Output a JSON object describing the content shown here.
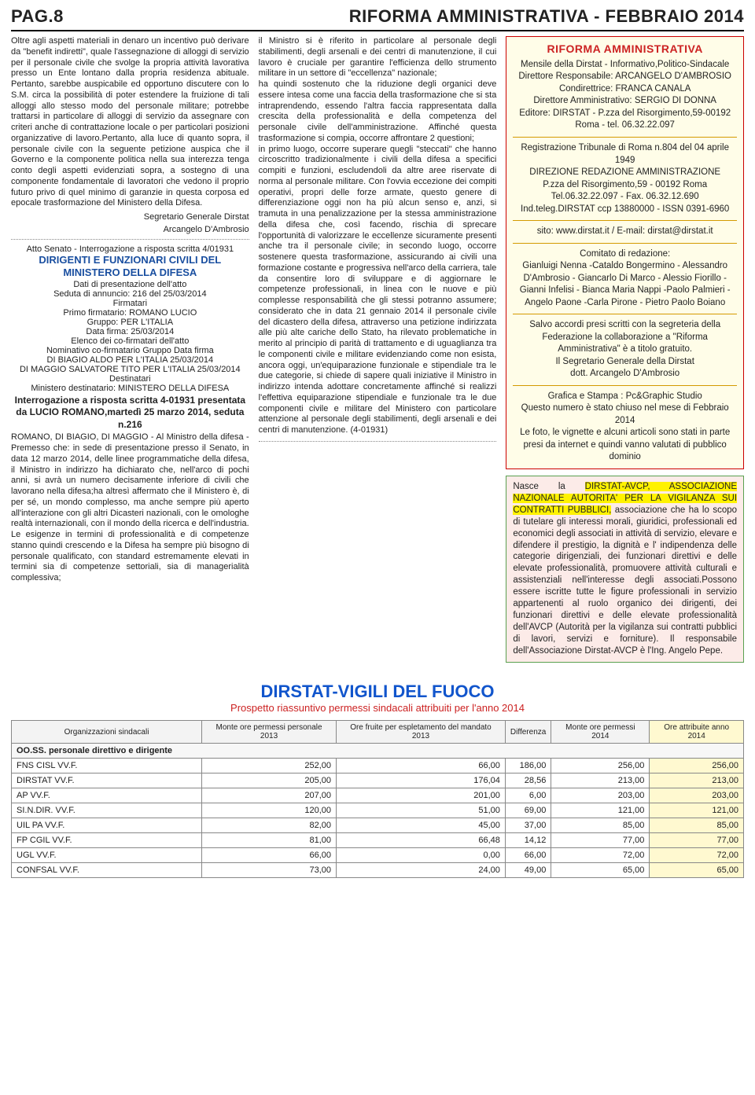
{
  "header": {
    "left": "PAG.8",
    "right": "RIFORMA AMMINISTRATIVA - FEBBRAIO 2014"
  },
  "col1": {
    "p1": "Oltre agli aspetti materiali in denaro un incentivo può derivare da \"benefit indiretti\", quale l'assegnazione di alloggi di servizio per il personale civile che svolge la propria attività lavorativa presso un Ente lontano dalla propria residenza abituale. Pertanto, sarebbe auspicabile ed opportuno discutere con lo S.M. circa la possibilità di poter estendere la fruizione di tali alloggi allo stesso modo del personale militare; potrebbe trattarsi in particolare di alloggi di servizio da assegnare con criteri anche di contrattazione locale o per particolari posizioni organizzative di lavoro.Pertanto, alla luce di quanto sopra, il personale civile con la seguente petizione auspica che il Governo e la componente politica nella sua interezza tenga conto degli aspetti evidenziati sopra, a sostegno di una componente fondamentale di lavoratori che vedono il proprio futuro privo di quel minimo di garanzie in questa corposa ed epocale trasformazione del Ministero della Difesa.",
    "sig1": "Segretario Generale Dirstat",
    "sig2": "Arcangelo D'Ambrosio",
    "interrog_line": "Atto Senato - Interrogazione a risposta scritta 4/01931",
    "title_blue1": "DIRIGENTI E FUNZIONARI CIVILI DEL MINISTERO DELLA DIFESA",
    "dati": "Dati di presentazione dell'atto",
    "seduta": "Seduta di annuncio: 216 del 25/03/2014",
    "firmatari": "Firmatari",
    "primo": "Primo firmatario: ROMANO LUCIO",
    "gruppo": "Gruppo: PER L'ITALIA",
    "data_firma": "Data firma: 25/03/2014",
    "elenco": "Elenco dei co-firmatari dell'atto",
    "nominativo": "Nominativo co-firmatario Gruppo Data firma",
    "dibiagio": "DI BIAGIO ALDO PER L'ITALIA 25/03/2014",
    "dimaggio": "DI MAGGIO SALVATORE TITO PER L'ITALIA 25/03/2014",
    "destinatari": "Destinatari",
    "ministero": "Ministero destinatario: MINISTERO DELLA DIFESA",
    "interrog_bold": "Interrogazione a risposta scritta 4-01931 presentata da LUCIO ROMANO,martedì 25 marzo 2014, seduta n.216",
    "p2": "ROMANO, DI BIAGIO, DI MAGGIO - Al Ministro della difesa - Premesso che:\nin sede di presentazione presso il Senato, in data 12 marzo 2014, delle linee programmatiche della difesa, il Ministro in indirizzo ha dichiarato che, nell'arco di pochi anni, si avrà un numero decisamente inferiore di civili che lavorano nella difesa;ha altresì affermato che il Ministero è, di per sé, un mondo complesso, ma anche sempre più aperto all'interazione con gli altri Dicasteri nazionali, con le omologhe realtà internazionali, con il mondo della ricerca e dell'industria. Le esigenze in termini di professionalità e di competenze stanno quindi crescendo e la Difesa ha sempre più bisogno di personale qualificato, con standard estremamente elevati in termini sia di competenze settoriali, sia di managerialità complessiva;"
  },
  "col2": {
    "p1": "il Ministro si è riferito in particolare al personale degli stabilimenti, degli arsenali e dei centri di manutenzione, il cui lavoro è cruciale per garantire l'efficienza dello strumento militare in un settore di \"eccellenza\" nazionale;",
    "p2": "ha quindi sostenuto che la riduzione degli organici deve essere intesa come una faccia della trasformazione che si sta intraprendendo, essendo l'altra faccia rappresentata dalla crescita della professionalità e della competenza del personale civile dell'amministrazione. Affinché questa trasformazione si compia, occorre affrontare 2 questioni;",
    "p3": "in primo luogo, occorre superare quegli \"steccati\" che hanno circoscritto tradizionalmente i civili della difesa a specifici compiti e funzioni, escludendoli da altre aree riservate di norma al personale militare. Con l'ovvia eccezione dei compiti operativi, propri delle forze armate, questo genere di differenziazione oggi non ha più alcun senso e, anzi, si tramuta in una penalizzazione per la stessa amministrazione della difesa che, così facendo, rischia di sprecare l'opportunità di valorizzare le eccellenze sicuramente presenti anche tra il personale civile; in secondo luogo, occorre sostenere questa trasformazione, assicurando ai civili una formazione costante e progressiva nell'arco della carriera, tale da consentire loro di sviluppare e di aggiornare le competenze professionali, in linea con le nuove e più complesse responsabilità che gli stessi potranno assumere; considerato che in data 21 gennaio 2014 il personale civile del dicastero della difesa, attraverso una petizione indirizzata alle più alte cariche dello Stato, ha rilevato problematiche in merito al principio di parità di trattamento e di uguaglianza tra le componenti civile e militare evidenziando come non esista, ancora oggi, un'equiparazione funzionale e stipendiale tra le due categorie, si chiede di sapere quali iniziative il Ministro in indirizzo intenda adottare concretamente affinché si realizzi l'effettiva equiparazione stipendiale e funzionale tra le due componenti civile e militare del Ministero con particolare attenzione al personale degli stabilimenti, degli arsenali e dei centri di manutenzione. (4-01931)"
  },
  "redbox": {
    "title": "RIFORMA AMMINISTRATIVA",
    "line1": "Mensile della Dirstat - Informativo,Politico-Sindacale",
    "line2": "Direttore Responsabile: ARCANGELO D'AMBROSIO",
    "line3": "Condirettrice: FRANCA CANALA",
    "line4": "Direttore Amministrativo: SERGIO DI DONNA",
    "line5": "Editore: DIRSTAT - P.zza del Risorgimento,59-00192 Roma - tel. 06.32.22.097",
    "reg": "Registrazione Tribunale di Roma n.804 del 04 aprile 1949",
    "dir": "DIREZIONE REDAZIONE AMMINISTRAZIONE",
    "addr": "P.zza del Risorgimento,59 - 00192 Roma",
    "tel": "Tel.06.32.22.097 - Fax. 06.32.12.690",
    "ind": "Ind.teleg.DIRSTAT ccp 13880000 - ISSN 0391-6960",
    "sito": "sito: www.dirstat.it / E-mail: dirstat@dirstat.it",
    "comitato": "Comitato di redazione:",
    "names": "Gianluigi Nenna -Cataldo Bongermino - Alessandro D'Ambrosio - Giancarlo Di Marco - Alessio Fiorillo - Gianni Infelisi - Bianca Maria Nappi -Paolo Palmieri - Angelo Paone -Carla Pirone - Pietro Paolo Boiano",
    "salvo": "Salvo accordi presi scritti con la segreteria della Federazione la collaborazione a \"Riforma Amministrativa\" è a titolo gratuito.",
    "segr": "Il Segretario Generale della Dirstat",
    "dott": "dott. Arcangelo D'Ambrosio",
    "grafica": "Grafica e Stampa : Pc&Graphic Studio",
    "numero": "Questo numero è stato chiuso nel mese di Febbraio 2014",
    "foto": "Le foto, le vignette e alcuni articoli sono stati in parte presi da internet e quindi vanno valutati di pubblico dominio"
  },
  "greenbox": {
    "pre": "Nasce la ",
    "hl": "DIRSTAT-AVCP, ASSOCIAZIONE NAZIONALE AUTORITA' PER LA VIGILANZA SUI CONTRATTI PUBBLICI,",
    "body": " associazione che ha lo scopo di tutelare gli interessi morali, giuridici, professionali ed economici degli associati in attività di servizio, elevare e difendere il prestigio, la dignità e l' indipendenza delle categorie dirigenziali, dei funzionari direttivi e delle elevate professionalità, promuovere attività culturali e assistenziali nell'interesse degli associati.Possono essere iscritte tutte le figure professionali in servizio appartenenti al ruolo organico dei dirigenti, dei funzionari direttivi e delle elevate professionalità dell'AVCP (Autorità per la vigilanza sui contratti pubblici di lavori, servizi e forniture). Il responsabile dell'Associazione Dirstat-AVCP è l'Ing. Angelo Pepe."
  },
  "vigili": {
    "title": "DIRSTAT-VIGILI DEL FUOCO",
    "sub": "Prospetto riassuntivo permessi sindacali attribuiti per l'anno 2014"
  },
  "table": {
    "headers": [
      "Organizzazioni sindacali",
      "Monte ore permessi personale 2013",
      "Ore fruite per espletamento del mandato 2013",
      "Differenza",
      "Monte ore permessi 2014",
      "Ore attribuite anno 2014"
    ],
    "section": "OO.SS. personale direttivo e dirigente",
    "rows": [
      {
        "org": "FNS CISL VV.F.",
        "c": [
          "252,00",
          "66,00",
          "186,00",
          "256,00",
          "256,00"
        ]
      },
      {
        "org": "DIRSTAT VV.F.",
        "c": [
          "205,00",
          "176,04",
          "28,56",
          "213,00",
          "213,00"
        ]
      },
      {
        "org": "AP VV.F.",
        "c": [
          "207,00",
          "201,00",
          "6,00",
          "203,00",
          "203,00"
        ]
      },
      {
        "org": "SI.N.DIR. VV.F.",
        "c": [
          "120,00",
          "51,00",
          "69,00",
          "121,00",
          "121,00"
        ]
      },
      {
        "org": "UIL PA VV.F.",
        "c": [
          "82,00",
          "45,00",
          "37,00",
          "85,00",
          "85,00"
        ]
      },
      {
        "org": "FP CGIL VV.F.",
        "c": [
          "81,00",
          "66,48",
          "14,12",
          "77,00",
          "77,00"
        ]
      },
      {
        "org": "UGL VV.F.",
        "c": [
          "66,00",
          "0,00",
          "66,00",
          "72,00",
          "72,00"
        ]
      },
      {
        "org": "CONFSAL VV.F.",
        "c": [
          "73,00",
          "24,00",
          "49,00",
          "65,00",
          "65,00"
        ]
      }
    ]
  }
}
